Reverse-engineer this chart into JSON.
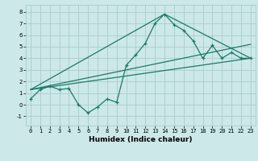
{
  "title": "",
  "xlabel": "Humidex (Indice chaleur)",
  "ylabel": "",
  "bg_color": "#cce8e8",
  "grid_color": "#aacccc",
  "line_color": "#1a7a6a",
  "xlim": [
    -0.5,
    23.5
  ],
  "ylim": [
    -1.8,
    8.6
  ],
  "yticks": [
    -1,
    0,
    1,
    2,
    3,
    4,
    5,
    6,
    7,
    8
  ],
  "xticks": [
    0,
    1,
    2,
    3,
    4,
    5,
    6,
    7,
    8,
    9,
    10,
    11,
    12,
    13,
    14,
    15,
    16,
    17,
    18,
    19,
    20,
    21,
    22,
    23
  ],
  "main_x": [
    0,
    1,
    2,
    3,
    4,
    5,
    6,
    7,
    8,
    9,
    10,
    11,
    12,
    13,
    14,
    15,
    16,
    17,
    18,
    19,
    20,
    21,
    22,
    23
  ],
  "main_y": [
    0.5,
    1.3,
    1.6,
    1.3,
    1.4,
    0.0,
    -0.7,
    -0.2,
    0.5,
    0.2,
    3.4,
    4.3,
    5.3,
    7.0,
    7.8,
    6.9,
    6.4,
    5.5,
    4.0,
    5.1,
    4.0,
    4.5,
    4.0,
    4.0
  ],
  "trend1_x": [
    0,
    23
  ],
  "trend1_y": [
    1.3,
    4.0
  ],
  "trend2_x": [
    0,
    23
  ],
  "trend2_y": [
    1.3,
    5.2
  ],
  "trend3_x": [
    0,
    14,
    23
  ],
  "trend3_y": [
    1.3,
    7.8,
    4.0
  ]
}
